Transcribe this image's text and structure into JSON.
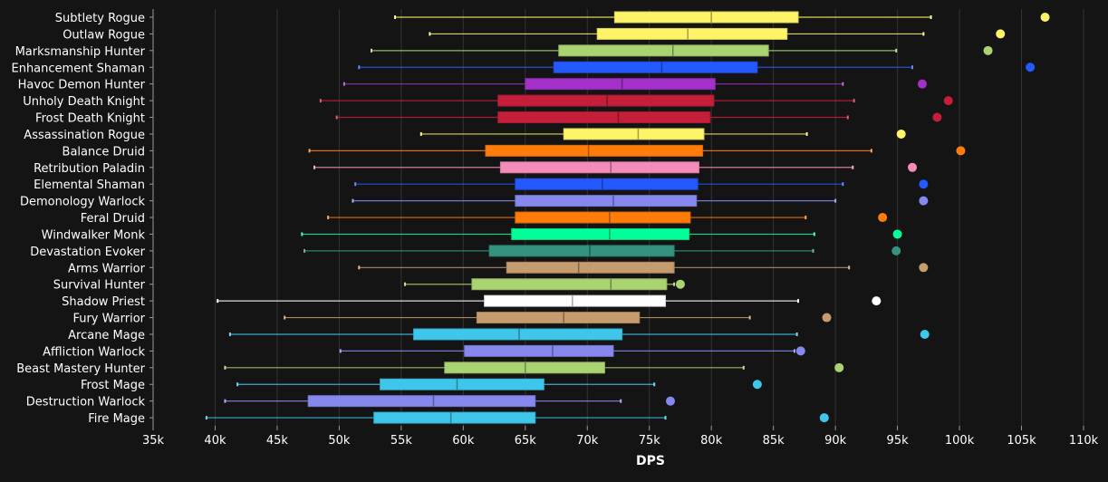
{
  "chart_data": {
    "type": "box",
    "title": "",
    "xlabel": "DPS",
    "ylabel": "",
    "xlim": [
      35000,
      110000
    ],
    "xticks": [
      35000,
      40000,
      45000,
      50000,
      55000,
      60000,
      65000,
      70000,
      75000,
      80000,
      85000,
      90000,
      95000,
      100000,
      105000,
      110000
    ],
    "xtick_labels": [
      "35k",
      "40k",
      "45k",
      "50k",
      "55k",
      "60k",
      "65k",
      "70k",
      "75k",
      "80k",
      "85k",
      "90k",
      "95k",
      "100k",
      "105k",
      "110k"
    ],
    "grid": true,
    "colors": {
      "background": "#141414",
      "grid": "#333333",
      "axis": "#9a9a9a",
      "text": "#ffffff"
    },
    "series": [
      {
        "name": "Subtlety Rogue",
        "color": "#FFF468",
        "min": 54500,
        "q1": 72200,
        "median": 80000,
        "q3": 87000,
        "max": 97700,
        "outlier": 106900
      },
      {
        "name": "Outlaw Rogue",
        "color": "#FFF468",
        "min": 57300,
        "q1": 70800,
        "median": 78100,
        "q3": 86100,
        "max": 97100,
        "outlier": 103300
      },
      {
        "name": "Marksmanship Hunter",
        "color": "#AAD372",
        "min": 52600,
        "q1": 67700,
        "median": 76900,
        "q3": 84600,
        "max": 94900,
        "outlier": 102300
      },
      {
        "name": "Enhancement Shaman",
        "color": "#2459FF",
        "min": 51600,
        "q1": 67300,
        "median": 76000,
        "q3": 83700,
        "max": 96200,
        "outlier": 105700
      },
      {
        "name": "Havoc Demon Hunter",
        "color": "#A330C9",
        "min": 50400,
        "q1": 65000,
        "median": 72800,
        "q3": 80300,
        "max": 90600,
        "outlier": 97000
      },
      {
        "name": "Unholy Death Knight",
        "color": "#C41E3A",
        "min": 48500,
        "q1": 62800,
        "median": 71600,
        "q3": 80200,
        "max": 91500,
        "outlier": 99100
      },
      {
        "name": "Frost Death Knight",
        "color": "#C41E3A",
        "min": 49800,
        "q1": 62800,
        "median": 72500,
        "q3": 79900,
        "max": 91000,
        "outlier": 98200
      },
      {
        "name": "Assassination Rogue",
        "color": "#FFF468",
        "min": 56600,
        "q1": 68100,
        "median": 74100,
        "q3": 79400,
        "max": 87700,
        "outlier": 95300
      },
      {
        "name": "Balance Druid",
        "color": "#FF7C0A",
        "min": 47600,
        "q1": 61800,
        "median": 70100,
        "q3": 79300,
        "max": 92900,
        "outlier": 100100
      },
      {
        "name": "Retribution Paladin",
        "color": "#F48CBA",
        "min": 48000,
        "q1": 63000,
        "median": 71900,
        "q3": 79000,
        "max": 91400,
        "outlier": 96200
      },
      {
        "name": "Elemental Shaman",
        "color": "#2459FF",
        "min": 51300,
        "q1": 64200,
        "median": 71200,
        "q3": 78900,
        "max": 90600,
        "outlier": 97100
      },
      {
        "name": "Demonology Warlock",
        "color": "#8788EE",
        "min": 51100,
        "q1": 64200,
        "median": 72100,
        "q3": 78800,
        "max": 90000,
        "outlier": 97100
      },
      {
        "name": "Feral Druid",
        "color": "#FF7C0A",
        "min": 49100,
        "q1": 64200,
        "median": 71800,
        "q3": 78300,
        "max": 87600,
        "outlier": 93800
      },
      {
        "name": "Windwalker Monk",
        "color": "#00FF98",
        "min": 47000,
        "q1": 63900,
        "median": 71800,
        "q3": 78200,
        "max": 88300,
        "outlier": 95000
      },
      {
        "name": "Devastation Evoker",
        "color": "#33937F",
        "min": 47200,
        "q1": 62100,
        "median": 70200,
        "q3": 77000,
        "max": 88200,
        "outlier": 94900
      },
      {
        "name": "Arms Warrior",
        "color": "#C69B6D",
        "min": 51600,
        "q1": 63500,
        "median": 69300,
        "q3": 77000,
        "max": 91100,
        "outlier": 97100
      },
      {
        "name": "Survival Hunter",
        "color": "#AAD372",
        "min": 55300,
        "q1": 60700,
        "median": 71900,
        "q3": 76400,
        "max": 77000,
        "outlier": 77500
      },
      {
        "name": "Shadow Priest",
        "color": "#FFFFFF",
        "min": 40200,
        "q1": 61700,
        "median": 68800,
        "q3": 76300,
        "max": 87000,
        "outlier": 93300
      },
      {
        "name": "Fury Warrior",
        "color": "#C69B6D",
        "min": 45600,
        "q1": 61100,
        "median": 68100,
        "q3": 74200,
        "max": 83100,
        "outlier": 89300
      },
      {
        "name": "Arcane Mage",
        "color": "#3FC7EB",
        "min": 41200,
        "q1": 56000,
        "median": 64500,
        "q3": 72800,
        "max": 86900,
        "outlier": 97200
      },
      {
        "name": "Affliction Warlock",
        "color": "#8788EE",
        "min": 50100,
        "q1": 60100,
        "median": 67200,
        "q3": 72100,
        "max": 86700,
        "outlier": 87200
      },
      {
        "name": "Beast Mastery Hunter",
        "color": "#AAD372",
        "min": 40800,
        "q1": 58500,
        "median": 65000,
        "q3": 71400,
        "max": 82600,
        "outlier": 90300
      },
      {
        "name": "Frost Mage",
        "color": "#3FC7EB",
        "min": 41800,
        "q1": 53300,
        "median": 59500,
        "q3": 66500,
        "max": 75400,
        "outlier": 83700
      },
      {
        "name": "Destruction Warlock",
        "color": "#8788EE",
        "min": 40800,
        "q1": 47500,
        "median": 57600,
        "q3": 65800,
        "max": 72700,
        "outlier": 76700
      },
      {
        "name": "Fire Mage",
        "color": "#3FC7EB",
        "min": 39300,
        "q1": 52800,
        "median": 59000,
        "q3": 65800,
        "max": 76300,
        "outlier": 89100
      }
    ]
  }
}
